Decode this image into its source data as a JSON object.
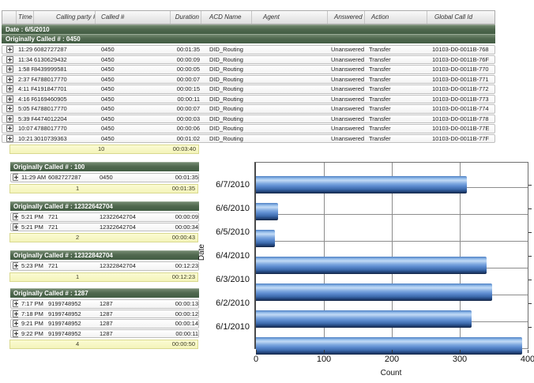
{
  "report": {
    "columns": [
      "Time",
      "Calling party #",
      "Called #",
      "Duration",
      "ACD Name",
      "Agent",
      "Answered",
      "Action",
      "Global Call Id"
    ],
    "date_label": "Date : 6/5/2010",
    "main_group": {
      "label": "Originally Called # : 0450",
      "rows": [
        {
          "time": "11:29 AM",
          "calling": "6082727287",
          "called": "0450",
          "duration": "00:01:35",
          "acd": "DID_Routing",
          "agent": "",
          "answered": "Unanswered",
          "action": "Transfer",
          "call_id": "10103-D0-0011B-768"
        },
        {
          "time": "11:34 AM",
          "calling": "6130629432",
          "called": "0450",
          "duration": "00:00:09",
          "acd": "DID_Routing",
          "agent": "",
          "answered": "Unanswered",
          "action": "Transfer",
          "call_id": "10103-D0-0011B-76F"
        },
        {
          "time": "1:58 PM",
          "calling": "8439999581",
          "called": "0450",
          "duration": "00:00:05",
          "acd": "DID_Routing",
          "agent": "",
          "answered": "Unanswered",
          "action": "Transfer",
          "call_id": "10103-D0-0011B-770"
        },
        {
          "time": "2:37 PM",
          "calling": "4788017770",
          "called": "0450",
          "duration": "00:00:07",
          "acd": "DID_Routing",
          "agent": "",
          "answered": "Unanswered",
          "action": "Transfer",
          "call_id": "10103-D0-0011B-771"
        },
        {
          "time": "4:11 PM",
          "calling": "4191847701",
          "called": "0450",
          "duration": "00:00:15",
          "acd": "DID_Routing",
          "agent": "",
          "answered": "Unanswered",
          "action": "Transfer",
          "call_id": "10103-D0-0011B-772"
        },
        {
          "time": "4:16 PM",
          "calling": "6169460905",
          "called": "0450",
          "duration": "00:00:11",
          "acd": "DID_Routing",
          "agent": "",
          "answered": "Unanswered",
          "action": "Transfer",
          "call_id": "10103-D0-0011B-773"
        },
        {
          "time": "5:05 PM",
          "calling": "4788017770",
          "called": "0450",
          "duration": "00:00:07",
          "acd": "DID_Routing",
          "agent": "",
          "answered": "Unanswered",
          "action": "Transfer",
          "call_id": "10103-D0-0011B-774"
        },
        {
          "time": "5:39 PM",
          "calling": "4474012204",
          "called": "0450",
          "duration": "00:00:03",
          "acd": "DID_Routing",
          "agent": "",
          "answered": "Unanswered",
          "action": "Transfer",
          "call_id": "10103-D0-0011B-778"
        },
        {
          "time": "10:07 PM",
          "calling": "4788017770",
          "called": "0450",
          "duration": "00:00:06",
          "acd": "DID_Routing",
          "agent": "",
          "answered": "Unanswered",
          "action": "Transfer",
          "call_id": "10103-D0-0011B-77E"
        },
        {
          "time": "10:21 PM",
          "calling": "3010739363",
          "called": "0450",
          "duration": "00:01:02",
          "acd": "DID_Routing",
          "agent": "",
          "answered": "Unanswered",
          "action": "Transfer",
          "call_id": "10103-D0-0011B-77F"
        }
      ],
      "summary": {
        "count": "10",
        "total_duration": "00:03:40"
      }
    },
    "groups": [
      {
        "label": "Originally Called # : 100",
        "rows": [
          {
            "time": "11:29 AM",
            "calling": "6082727287",
            "called": "0450",
            "duration": "00:01:35"
          }
        ],
        "summary": {
          "count": "1",
          "total_duration": "00:01:35"
        }
      },
      {
        "label": "Originally Called # : 12322642704",
        "rows": [
          {
            "time": "5:21 PM",
            "calling": "721",
            "called": "12322642704",
            "duration": "00:00:09"
          },
          {
            "time": "5:21 PM",
            "calling": "721",
            "called": "12322642704",
            "duration": "00:00:34"
          }
        ],
        "summary": {
          "count": "2",
          "total_duration": "00:00:43"
        }
      },
      {
        "label": "Originally Called # : 12322842704",
        "rows": [
          {
            "time": "5:23 PM",
            "calling": "721",
            "called": "12322842704",
            "duration": "00:12:23"
          }
        ],
        "summary": {
          "count": "1",
          "total_duration": "00:12:23"
        }
      },
      {
        "label": "Originally Called # : 1287",
        "rows": [
          {
            "time": "7:17 PM",
            "calling": "9199748952",
            "called": "1287",
            "duration": "00:00:13"
          },
          {
            "time": "7:18 PM",
            "calling": "9199748952",
            "called": "1287",
            "duration": "00:00:12"
          },
          {
            "time": "9:21 PM",
            "calling": "9199748952",
            "called": "1287",
            "duration": "00:00:14"
          },
          {
            "time": "9:22 PM",
            "calling": "9199748952",
            "called": "1287",
            "duration": "00:00:11"
          }
        ],
        "summary": {
          "count": "4",
          "total_duration": "00:00:50"
        }
      }
    ]
  },
  "chart_data": {
    "type": "bar",
    "orientation": "horizontal",
    "title": "",
    "categories": [
      "6/7/2010",
      "6/6/2010",
      "6/5/2010",
      "6/4/2010",
      "6/3/2010",
      "6/2/2010",
      "6/1/2010"
    ],
    "values": [
      310,
      33,
      28,
      340,
      348,
      318,
      392
    ],
    "xlabel": "Count",
    "ylabel": "Date",
    "xlim": [
      0,
      400
    ],
    "xticks": [
      0,
      100,
      200,
      300,
      400
    ],
    "grid": true,
    "legend": "none",
    "bar_color": "#5d8cd0"
  },
  "colors": {
    "group_band": "#50684f",
    "summary_band": "#f7f7c6",
    "bar_dark": "#1b3560",
    "grid_line": "#8c8c8c"
  }
}
